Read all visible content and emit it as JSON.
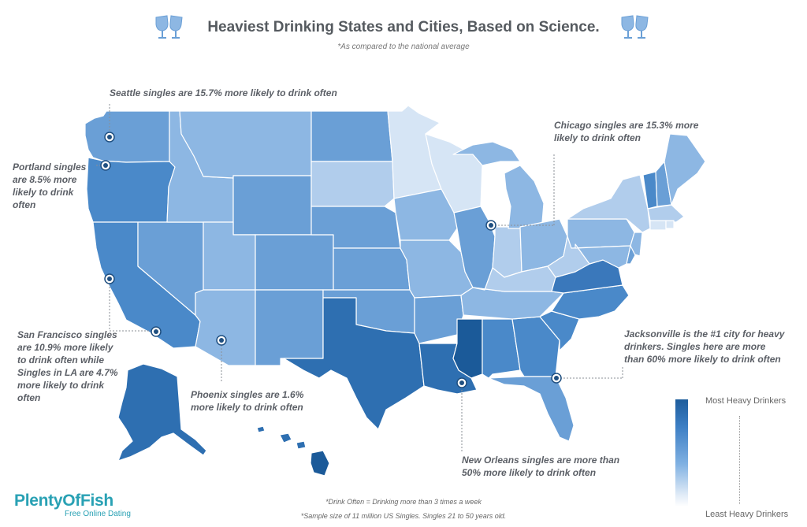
{
  "header": {
    "title": "Heaviest Drinking States and Cities, Based on Science.",
    "subtitle": "*As compared to the national average"
  },
  "annotations": {
    "seattle": "Seattle singles are 15.7% more likely to drink often",
    "portland": "Portland singles are 8.5% more likely to drink often",
    "sanfrancisco": "San Francisco singles are 10.9% more likely to drink often while Singles in LA are 4.7% more likely to drink often",
    "phoenix": "Phoenix singles are 1.6% more likely to drink often",
    "chicago": "Chicago singles are 15.3% more likely to drink often",
    "jacksonville": "Jacksonville is the #1 city for heavy drinkers. Singles here are more than 60% more likely to drink often",
    "neworleans": "New Orleans singles are more than 50% more likely to drink often"
  },
  "legend": {
    "top": "Most Heavy Drinkers",
    "bottom": "Least Heavy Drinkers"
  },
  "footer": {
    "note1": "*Drink Often = Drinking more than 3 times a week",
    "note2": "*Sample size of 11 million US Singles. Singles 21 to 50 years old."
  },
  "logo": {
    "name": "PlentyOfFish",
    "tagline": "Free Online Dating"
  },
  "colors": {
    "darkest": "#1b5a99",
    "dark": "#2e6fb1",
    "mid_dark": "#4a89c9",
    "mid": "#6a9fd6",
    "mid_light": "#8db7e3",
    "light": "#b1cdec",
    "lightest": "#d6e5f5",
    "brand": "#29a1b4",
    "marker": "#1f4f80"
  }
}
